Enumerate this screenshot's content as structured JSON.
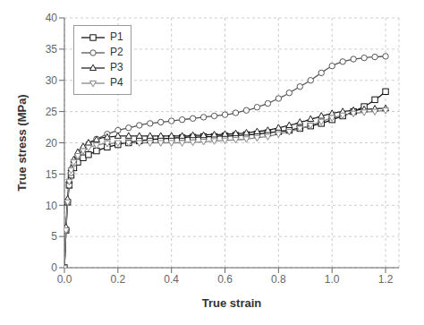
{
  "chart_data": {
    "type": "line",
    "title": "",
    "xlabel": "True strain",
    "ylabel": "True stress (MPa)",
    "xlim": [
      0,
      1.25
    ],
    "ylim": [
      0,
      40
    ],
    "xticks": [
      {
        "value": 0,
        "label": "0.0"
      },
      0.2,
      0.4,
      0.6,
      0.8,
      {
        "value": 1,
        "label": "1.0"
      },
      1.2
    ],
    "yticks": [
      0,
      5,
      10,
      15,
      20,
      25,
      30,
      35,
      40
    ],
    "grid": true,
    "legend": "upper left",
    "x": [
      0.0,
      0.003,
      0.006,
      0.009,
      0.012,
      0.015,
      0.018,
      0.021,
      0.025,
      0.03,
      0.035,
      0.04,
      0.05,
      0.06,
      0.07,
      0.08,
      0.09,
      0.1,
      0.12,
      0.14,
      0.16,
      0.18,
      0.2,
      0.22,
      0.24,
      0.26,
      0.28,
      0.3,
      0.32,
      0.34,
      0.36,
      0.38,
      0.4,
      0.42,
      0.44,
      0.46,
      0.48,
      0.5,
      0.52,
      0.54,
      0.56,
      0.58,
      0.6,
      0.62,
      0.64,
      0.66,
      0.68,
      0.7,
      0.72,
      0.74,
      0.76,
      0.78,
      0.8,
      0.82,
      0.84,
      0.86,
      0.88,
      0.9,
      0.92,
      0.94,
      0.96,
      0.98,
      1.0,
      1.02,
      1.04,
      1.06,
      1.08,
      1.1,
      1.12,
      1.14,
      1.16,
      1.18,
      1.2
    ],
    "series": [
      {
        "name": "P1",
        "color": "#111111",
        "marker": "square",
        "values": [
          0.0,
          3.0,
          6.0,
          8.5,
          10.5,
          12.0,
          13.2,
          14.0,
          14.8,
          15.5,
          16.0,
          16.4,
          16.9,
          17.3,
          17.6,
          17.9,
          18.1,
          18.3,
          18.7,
          19.0,
          19.3,
          19.5,
          19.7,
          19.9,
          20.0,
          20.2,
          20.3,
          20.4,
          20.5,
          20.6,
          20.6,
          20.7,
          20.7,
          20.8,
          20.8,
          20.9,
          20.9,
          20.9,
          21.0,
          21.0,
          21.0,
          21.1,
          21.1,
          21.1,
          21.2,
          21.2,
          21.3,
          21.3,
          21.4,
          21.5,
          21.6,
          21.7,
          21.8,
          21.9,
          22.0,
          22.2,
          22.3,
          22.5,
          22.7,
          22.9,
          23.1,
          23.4,
          23.7,
          24.0,
          24.3,
          24.6,
          25.0,
          25.4,
          25.8,
          26.3,
          26.9,
          27.5,
          28.2
        ]
      },
      {
        "name": "P2",
        "color": "#555555",
        "marker": "circle",
        "values": [
          0.0,
          3.0,
          6.0,
          8.5,
          10.5,
          12.0,
          13.2,
          14.2,
          15.2,
          16.0,
          16.7,
          17.2,
          17.9,
          18.5,
          19.0,
          19.4,
          19.8,
          20.1,
          20.6,
          21.0,
          21.4,
          21.7,
          22.0,
          22.2,
          22.4,
          22.6,
          22.8,
          23.0,
          23.1,
          23.2,
          23.3,
          23.4,
          23.5,
          23.6,
          23.7,
          23.8,
          23.9,
          24.0,
          24.1,
          24.2,
          24.3,
          24.4,
          24.5,
          24.6,
          24.8,
          25.0,
          25.2,
          25.4,
          25.7,
          26.0,
          26.3,
          26.7,
          27.1,
          27.5,
          28.0,
          28.5,
          29.0,
          29.5,
          30.0,
          30.6,
          31.2,
          31.8,
          32.3,
          32.7,
          33.0,
          33.2,
          33.4,
          33.5,
          33.6,
          33.7,
          33.75,
          33.8,
          33.85
        ]
      },
      {
        "name": "P3",
        "color": "#222222",
        "marker": "triangle-up",
        "values": [
          0.0,
          3.0,
          6.5,
          9.0,
          11.0,
          12.8,
          14.0,
          15.0,
          15.9,
          16.7,
          17.3,
          17.8,
          18.5,
          19.0,
          19.4,
          19.7,
          20.0,
          20.2,
          20.5,
          20.8,
          20.9,
          21.0,
          21.1,
          21.1,
          21.1,
          21.1,
          21.1,
          21.1,
          21.1,
          21.1,
          21.1,
          21.1,
          21.1,
          21.1,
          21.1,
          21.1,
          21.2,
          21.2,
          21.2,
          21.3,
          21.3,
          21.3,
          21.4,
          21.4,
          21.5,
          21.5,
          21.6,
          21.7,
          21.8,
          21.9,
          22.0,
          22.2,
          22.4,
          22.6,
          22.8,
          23.0,
          23.3,
          23.5,
          23.8,
          24.0,
          24.3,
          24.5,
          24.7,
          24.9,
          25.0,
          25.1,
          25.2,
          25.3,
          25.35,
          25.4,
          25.45,
          25.5,
          25.5
        ]
      },
      {
        "name": "P4",
        "color": "#888888",
        "marker": "triangle-down",
        "values": [
          0.0,
          3.0,
          6.0,
          8.5,
          10.5,
          12.5,
          13.8,
          14.8,
          15.6,
          16.3,
          16.9,
          17.4,
          17.9,
          18.3,
          18.7,
          18.9,
          19.2,
          19.4,
          19.6,
          19.8,
          19.9,
          19.9,
          20.0,
          20.0,
          20.0,
          20.0,
          20.0,
          20.0,
          20.0,
          20.0,
          20.0,
          20.0,
          20.0,
          20.0,
          20.0,
          20.1,
          20.1,
          20.1,
          20.2,
          20.2,
          20.3,
          20.3,
          20.4,
          20.4,
          20.5,
          20.5,
          20.6,
          20.7,
          20.8,
          20.9,
          21.0,
          21.2,
          21.4,
          21.6,
          21.8,
          22.0,
          22.3,
          22.5,
          22.8,
          23.1,
          23.4,
          23.7,
          24.0,
          24.2,
          24.4,
          24.6,
          24.7,
          24.8,
          24.9,
          24.95,
          25.0,
          25.1,
          25.2
        ]
      }
    ]
  }
}
